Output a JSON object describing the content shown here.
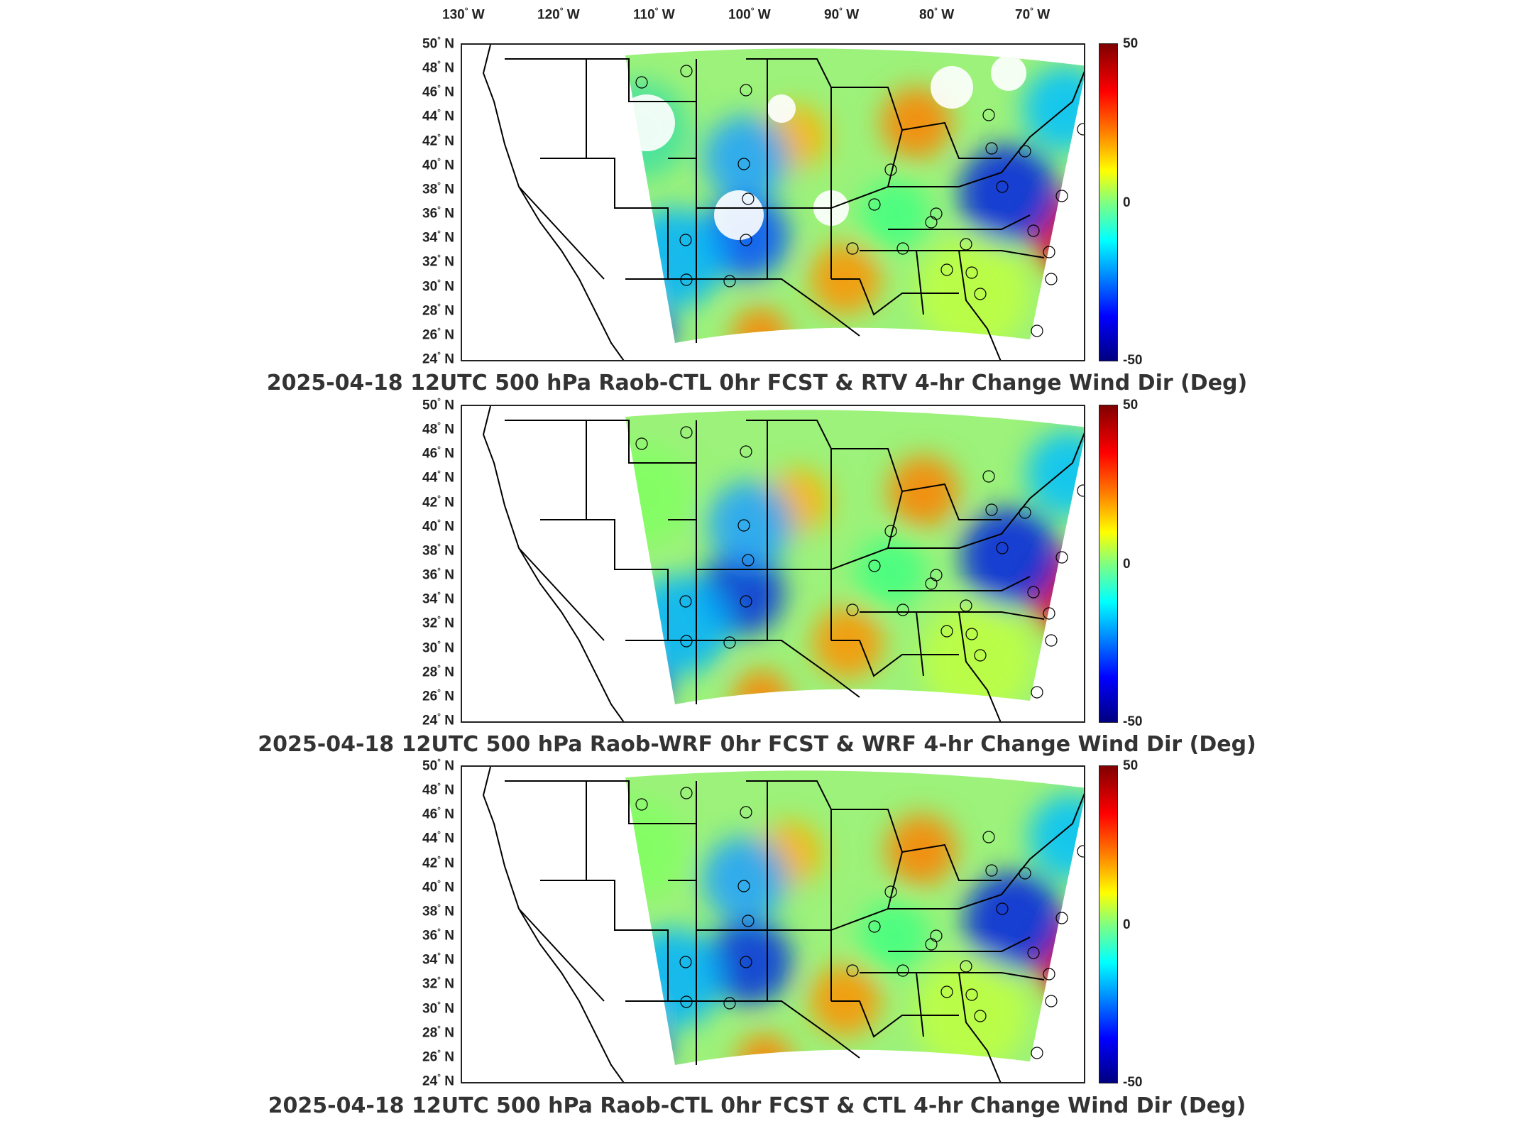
{
  "lon_axis": [
    "130",
    "120",
    "110",
    "100",
    "90",
    "80",
    "70"
  ],
  "lon_suffix": "W",
  "lat_axis": [
    "50",
    "48",
    "46",
    "44",
    "42",
    "40",
    "38",
    "36",
    "34",
    "32",
    "30",
    "28",
    "26",
    "24"
  ],
  "lat_suffix": "N",
  "colorbar": {
    "max_label": "50",
    "mid_label": "0",
    "min_label": "-50",
    "colors": [
      "#800000",
      "#ff0000",
      "#ff8000",
      "#ffff00",
      "#80ff80",
      "#00ffff",
      "#0080ff",
      "#0000ff",
      "#000080"
    ]
  },
  "panels": [
    {
      "title": "2025-04-18 12UTC 500 hPa Raob-CTL 0hr FCST & RTV 4-hr Change Wind Dir (Deg)"
    },
    {
      "title": "2025-04-18 12UTC 500 hPa Raob-WRF 0hr FCST & WRF 4-hr Change Wind Dir (Deg)"
    },
    {
      "title": "2025-04-18 12UTC 500 hPa Raob-CTL 0hr FCST & CTL 4-hr Change Wind Dir (Deg)"
    }
  ],
  "raob_markers": "open black circles"
}
